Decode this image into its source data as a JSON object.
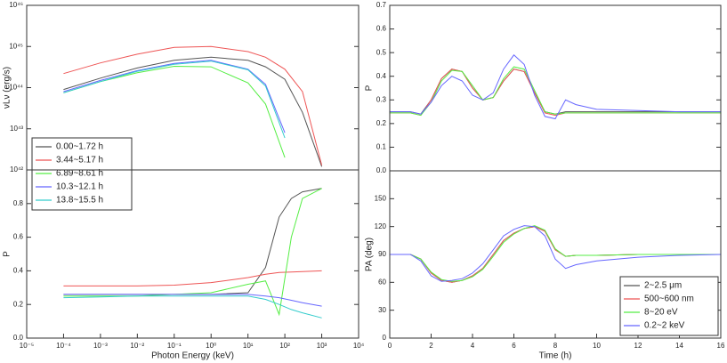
{
  "chart_data": [
    {
      "type": "line",
      "ylabel": "νLν (erg/s)",
      "xlog": true,
      "ylog": true,
      "xlim": [
        1e-05,
        10000.0
      ],
      "ylim": [
        1e+42,
        1e+46
      ],
      "yticks": [
        {
          "value": 1e+42,
          "label": "10⁴²"
        },
        {
          "value": 1e+43,
          "label": "10⁴³"
        },
        {
          "value": 1e+44,
          "label": "10⁴⁴"
        },
        {
          "value": 1e+45,
          "label": "10⁴⁵"
        },
        {
          "value": 1e+46,
          "label": "10⁴⁶"
        }
      ],
      "legend": "lower left",
      "x": [
        0.0001,
        0.001,
        0.01,
        0.1,
        1,
        10,
        30,
        100,
        300,
        1000
      ],
      "series": [
        {
          "name": "0.00~1.72 h",
          "color": "#555555",
          "values": [
            9e+43,
            1.7e+44,
            3e+44,
            4.6e+44,
            5.5e+44,
            4.6e+44,
            3.2e+44,
            1.6e+44,
            2.5e+43,
            1.2e+42
          ]
        },
        {
          "name": "3.44~5.17 h",
          "color": "#ee5555",
          "values": [
            2.2e+44,
            4e+44,
            6.5e+44,
            9.5e+44,
            1e+45,
            7.5e+44,
            5.5e+44,
            2.8e+44,
            8e+43,
            1.3e+42
          ]
        },
        {
          "name": "6.89~8.61 h",
          "color": "#55ee44",
          "values": [
            7.5e+43,
            1.4e+44,
            2.3e+44,
            3.3e+44,
            3.2e+44,
            1.3e+44,
            4e+43,
            2e+42,
            null,
            null
          ]
        },
        {
          "name": "10.3~12.1 h",
          "color": "#6666ff",
          "values": [
            8e+43,
            1.5e+44,
            2.6e+44,
            3.9e+44,
            4.6e+44,
            2.8e+44,
            1.2e+44,
            8e+42,
            null,
            null
          ]
        },
        {
          "name": "13.8~15.5 h",
          "color": "#33cccc",
          "values": [
            7.5e+43,
            1.4e+44,
            2.5e+44,
            3.7e+44,
            4.4e+44,
            2.7e+44,
            1.1e+44,
            6e+42,
            null,
            null
          ]
        }
      ]
    },
    {
      "type": "line",
      "xlabel": "Photon Energy (keV)",
      "ylabel": "P",
      "xlog": true,
      "xlim": [
        1e-05,
        10000.0
      ],
      "ylim": [
        0,
        1
      ],
      "xticks": [
        {
          "value": 1e-05,
          "label": "10⁻⁵"
        },
        {
          "value": 0.0001,
          "label": "10⁻⁴"
        },
        {
          "value": 0.001,
          "label": "10⁻³"
        },
        {
          "value": 0.01,
          "label": "10⁻²"
        },
        {
          "value": 0.1,
          "label": "10⁻¹"
        },
        {
          "value": 1,
          "label": "10⁰"
        },
        {
          "value": 10,
          "label": "10¹"
        },
        {
          "value": 100,
          "label": "10²"
        },
        {
          "value": 1000,
          "label": "10³"
        },
        {
          "value": 10000,
          "label": "10⁴"
        }
      ],
      "yticks": [
        {
          "value": 0,
          "label": "0.0"
        },
        0.2,
        0.4,
        0.6,
        0.8
      ],
      "x": [
        0.0001,
        0.001,
        0.01,
        0.1,
        1,
        10,
        30,
        70,
        150,
        300,
        1000
      ],
      "series": [
        {
          "color": "#555555",
          "values": [
            0.26,
            0.26,
            0.26,
            0.26,
            0.26,
            0.27,
            0.42,
            0.72,
            0.83,
            0.87,
            0.89
          ]
        },
        {
          "color": "#ee5555",
          "values": [
            0.31,
            0.31,
            0.31,
            0.315,
            0.33,
            0.36,
            0.38,
            0.39,
            0.393,
            0.395,
            0.4
          ]
        },
        {
          "color": "#55ee44",
          "values": [
            0.25,
            0.25,
            0.25,
            0.26,
            0.27,
            0.32,
            0.34,
            0.14,
            0.6,
            0.83,
            0.89
          ]
        },
        {
          "color": "#6666ff",
          "values": [
            0.26,
            0.26,
            0.26,
            0.26,
            0.26,
            0.26,
            0.25,
            0.24,
            0.225,
            0.21,
            0.19
          ]
        },
        {
          "color": "#33cccc",
          "values": [
            0.24,
            0.245,
            0.25,
            0.25,
            0.25,
            0.25,
            0.23,
            0.2,
            0.17,
            0.15,
            0.12
          ]
        }
      ]
    },
    {
      "type": "line",
      "ylabel": "P",
      "xlim": [
        0,
        16
      ],
      "ylim": [
        0,
        0.7
      ],
      "yticks": [
        {
          "value": 0,
          "label": "0.0"
        },
        0.1,
        0.2,
        0.3,
        0.4,
        0.5,
        0.6,
        0.7
      ],
      "x": [
        0,
        1,
        1.5,
        2,
        2.5,
        3,
        3.5,
        4,
        4.5,
        5,
        5.5,
        6,
        6.5,
        7,
        7.5,
        8,
        8.5,
        9,
        10,
        12,
        14,
        16
      ],
      "series": [
        {
          "color": "#555555",
          "values": [
            0.25,
            0.25,
            0.24,
            0.3,
            0.39,
            0.43,
            0.42,
            0.35,
            0.3,
            0.31,
            0.38,
            0.43,
            0.42,
            0.33,
            0.25,
            0.24,
            0.25,
            0.25,
            0.25,
            0.25,
            0.25,
            0.25
          ]
        },
        {
          "color": "#ee5555",
          "values": [
            0.245,
            0.245,
            0.235,
            0.3,
            0.39,
            0.43,
            0.42,
            0.35,
            0.3,
            0.31,
            0.38,
            0.43,
            0.42,
            0.33,
            0.245,
            0.235,
            0.245,
            0.245,
            0.245,
            0.245,
            0.245,
            0.245
          ]
        },
        {
          "color": "#55ee44",
          "values": [
            0.245,
            0.245,
            0.235,
            0.29,
            0.38,
            0.425,
            0.42,
            0.36,
            0.3,
            0.31,
            0.39,
            0.44,
            0.43,
            0.34,
            0.25,
            0.24,
            0.245,
            0.245,
            0.245,
            0.245,
            0.245,
            0.245
          ]
        },
        {
          "color": "#6666ff",
          "values": [
            0.25,
            0.25,
            0.24,
            0.29,
            0.36,
            0.4,
            0.38,
            0.32,
            0.3,
            0.33,
            0.43,
            0.49,
            0.45,
            0.32,
            0.23,
            0.22,
            0.3,
            0.28,
            0.26,
            0.255,
            0.25,
            0.25
          ]
        }
      ]
    },
    {
      "type": "line",
      "xlabel": "Time (h)",
      "ylabel": "PA (deg)",
      "xlim": [
        0,
        16
      ],
      "ylim": [
        0,
        180
      ],
      "xticks": [
        0,
        2,
        4,
        6,
        8,
        10,
        12,
        14,
        16
      ],
      "yticks": [
        0,
        30,
        60,
        90,
        120,
        150
      ],
      "legend": "lower right",
      "x": [
        0,
        1,
        1.5,
        2,
        2.5,
        3,
        3.5,
        4,
        4.5,
        5,
        5.5,
        6,
        6.5,
        7,
        7.5,
        8,
        8.5,
        9,
        10,
        12,
        14,
        16
      ],
      "series": [
        {
          "name": "2~2.5 μm",
          "color": "#555555",
          "values": [
            90,
            90,
            85,
            70,
            62,
            60,
            62,
            67,
            75,
            90,
            105,
            113,
            118,
            120,
            115,
            95,
            88,
            89,
            89,
            90,
            90,
            90
          ]
        },
        {
          "name": "500~600 nm",
          "color": "#ee5555",
          "values": [
            90,
            90,
            85,
            70,
            62,
            60,
            62,
            67,
            75,
            90,
            105,
            113,
            118,
            120,
            115,
            95,
            88,
            89,
            89,
            90,
            90,
            90
          ]
        },
        {
          "name": "8~20 eV",
          "color": "#55ee44",
          "values": [
            90,
            90,
            85,
            71,
            63,
            61,
            62,
            66,
            74,
            88,
            103,
            112,
            118,
            121,
            116,
            96,
            88,
            89,
            89,
            90,
            90,
            90
          ]
        },
        {
          "name": "0.2~2 keV",
          "color": "#6666ff",
          "values": [
            90,
            90,
            83,
            67,
            61,
            62,
            64,
            70,
            80,
            95,
            110,
            117,
            121,
            120,
            110,
            85,
            75,
            79,
            83,
            87,
            89,
            90
          ]
        }
      ]
    }
  ]
}
